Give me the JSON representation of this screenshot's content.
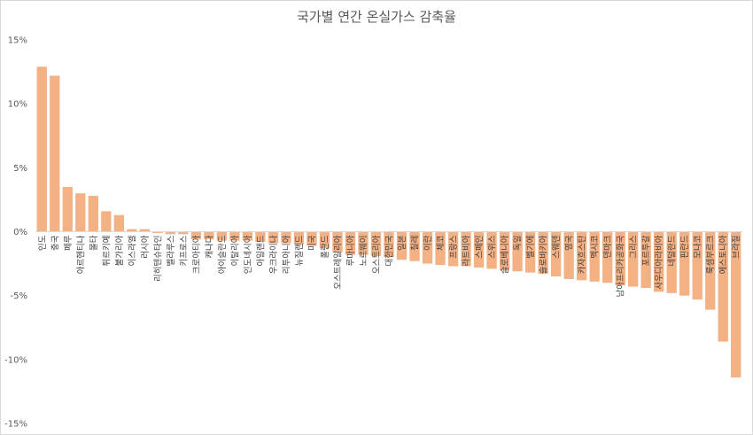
{
  "chart_data": {
    "type": "bar",
    "title": "국가별 연간 온실가스 감축율",
    "xlabel": "",
    "ylabel": "",
    "ylim": [
      -15,
      15
    ],
    "yticks": [
      15,
      10,
      5,
      0,
      -5,
      -10,
      -15
    ],
    "ytick_format": "percent",
    "grid": false,
    "legend": "none",
    "bar_color": "#f4b183",
    "categories": [
      "인도",
      "중국",
      "페루",
      "아르헨티나",
      "몰타",
      "튀르키예",
      "불가리아",
      "이스라엘",
      "러시아",
      "리히텐슈타인",
      "벨라루스",
      "키프로스",
      "크로아티아",
      "캐나다",
      "아이슬란드",
      "이탈리아",
      "인도네시아",
      "아일랜드",
      "우크라이나",
      "리투아니아",
      "뉴질랜드",
      "미국",
      "폴란드",
      "오스트레일리아",
      "루마니아",
      "노르웨이",
      "오스트리아",
      "대한민국",
      "일본",
      "칠레",
      "이란",
      "체코",
      "프랑스",
      "라트비아",
      "스페인",
      "스위스",
      "슬로베니아",
      "독일",
      "벨기에",
      "슬로바키아",
      "스웨덴",
      "영국",
      "카자흐스탄",
      "멕시코",
      "덴마크",
      "남아프리카공화국",
      "그리스",
      "포르투갈",
      "사우디아라비아",
      "네덜란드",
      "핀란드",
      "모나코",
      "룩셈부르크",
      "에스토니아",
      "브라질"
    ],
    "values": [
      12.9,
      12.2,
      3.5,
      3.0,
      2.8,
      1.6,
      1.3,
      0.2,
      0.2,
      -0.1,
      -0.2,
      -0.2,
      -0.6,
      -0.6,
      -0.7,
      -0.7,
      -0.7,
      -0.8,
      -0.9,
      -0.9,
      -1.0,
      -1.1,
      -1.3,
      -1.6,
      -1.8,
      -1.8,
      -1.9,
      -2.0,
      -2.2,
      -2.3,
      -2.5,
      -2.6,
      -2.7,
      -2.7,
      -2.8,
      -2.9,
      -3.0,
      -3.1,
      -3.2,
      -3.3,
      -3.5,
      -3.7,
      -3.8,
      -3.9,
      -4.0,
      -4.2,
      -4.3,
      -4.4,
      -4.7,
      -4.8,
      -5.0,
      -5.3,
      -6.1,
      -8.6,
      -11.4
    ]
  }
}
